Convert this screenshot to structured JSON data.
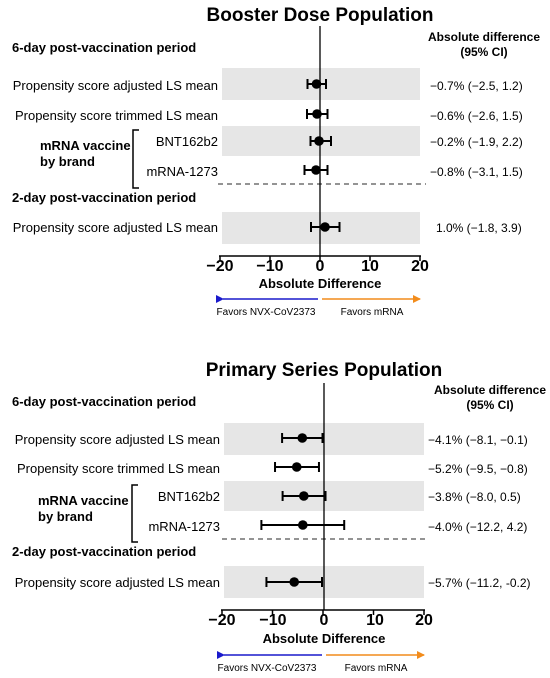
{
  "chart_data": [
    {
      "type": "forest",
      "title": "Booster Dose Population",
      "xlabel": "Absolute Difference",
      "xlim": [
        -20,
        20
      ],
      "xticks": [
        "−20",
        "−10",
        "0",
        "10",
        "20"
      ],
      "ci_header": [
        "Absolute difference",
        "(95% CI)"
      ],
      "sections": [
        "6-day post-vaccination period",
        "2-day post-vaccination period"
      ],
      "group_label": [
        "mRNA vaccine",
        "by brand"
      ],
      "rows": [
        {
          "label": "Propensity score adjusted LS mean",
          "estimate": -0.7,
          "lower": -2.5,
          "upper": 1.2,
          "ci_text": "−0.7%  (−2.5, 1.2)"
        },
        {
          "label": "Propensity score trimmed LS mean",
          "estimate": -0.6,
          "lower": -2.6,
          "upper": 1.5,
          "ci_text": "−0.6%  (−2.6, 1.5)"
        },
        {
          "label": "BNT162b2",
          "estimate": -0.2,
          "lower": -1.9,
          "upper": 2.2,
          "ci_text": "−0.2%  (−1.9, 2.2)"
        },
        {
          "label": "mRNA-1273",
          "estimate": -0.8,
          "lower": -3.1,
          "upper": 1.5,
          "ci_text": "−0.8%  (−3.1, 1.5)"
        },
        {
          "label": "Propensity score adjusted LS mean",
          "estimate": 1.0,
          "lower": -1.8,
          "upper": 3.9,
          "ci_text": "1.0%  (−1.8, 3.9)"
        }
      ],
      "favors_left": "Favors NVX-CoV2373",
      "favors_right": "Favors mRNA"
    },
    {
      "type": "forest",
      "title": "Primary Series Population",
      "xlabel": "Absolute Difference",
      "xlim": [
        -20,
        20
      ],
      "xticks": [
        "−20",
        "−10",
        "0",
        "10",
        "20"
      ],
      "ci_header": [
        "Absolute difference",
        "(95% CI)"
      ],
      "sections": [
        "6-day post-vaccination period",
        "2-day post-vaccination period"
      ],
      "group_label": [
        "mRNA vaccine",
        "by brand"
      ],
      "rows": [
        {
          "label": "Propensity score adjusted LS mean",
          "estimate": -4.1,
          "lower": -8.1,
          "upper": -0.1,
          "ci_text": "−4.1%  (−8.1, −0.1)"
        },
        {
          "label": "Propensity score trimmed LS mean",
          "estimate": -5.2,
          "lower": -9.5,
          "upper": -0.8,
          "ci_text": "−5.2%  (−9.5, −0.8)"
        },
        {
          "label": "BNT162b2",
          "estimate": -3.8,
          "lower": -8.0,
          "upper": 0.5,
          "ci_text": "−3.8%  (−8.0, 0.5)"
        },
        {
          "label": "mRNA-1273",
          "estimate": -4.0,
          "lower": -12.2,
          "upper": 4.2,
          "ci_text": "−4.0%  (−12.2, 4.2)"
        },
        {
          "label": "Propensity score adjusted LS mean",
          "estimate": -5.7,
          "lower": -11.2,
          "upper": -0.2,
          "ci_text": "−5.7%  (−11.2, -0.2)"
        }
      ],
      "favors_left": "Favors NVX-CoV2373",
      "favors_right": "Favors mRNA"
    }
  ],
  "colors": {
    "row_shade": "#e6e6e6",
    "favor_left_arrow": "#1a1acc",
    "favor_right_arrow": "#f28c1c",
    "axis": "#000000",
    "dashed_separator": "#555555"
  }
}
